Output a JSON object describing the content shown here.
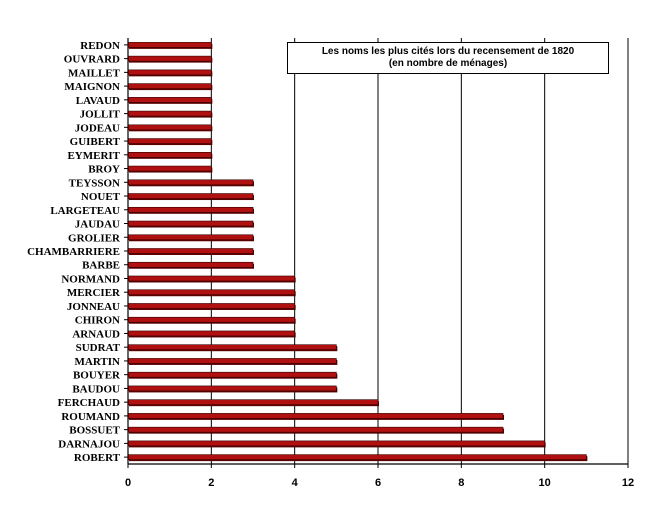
{
  "chart_data": {
    "type": "bar",
    "orientation": "horizontal",
    "title": "Les noms les plus cités lors du recensement de 1820",
    "subtitle": "(en nombre de ménages)",
    "categories": [
      "REDON",
      "OUVRARD",
      "MAILLET",
      "MAIGNON",
      "LAVAUD",
      "JOLLIT",
      "JODEAU",
      "GUIBERT",
      "EYMERIT",
      "BROY",
      "TEYSSON",
      "NOUET",
      "LARGETEAU",
      "JAUDAU",
      "GROLIER",
      "CHAMBARRIERE",
      "BARBE",
      "NORMAND",
      "MERCIER",
      "JONNEAU",
      "CHIRON",
      "ARNAUD",
      "SUDRAT",
      "MARTIN",
      "BOUYER",
      "BAUDOU",
      "FERCHAUD",
      "ROUMAND",
      "BOSSUET",
      "DARNAJOU",
      "ROBERT"
    ],
    "values": [
      2,
      2,
      2,
      2,
      2,
      2,
      2,
      2,
      2,
      2,
      3,
      3,
      3,
      3,
      3,
      3,
      3,
      4,
      4,
      4,
      4,
      4,
      5,
      5,
      5,
      5,
      6,
      9,
      9,
      10,
      11
    ],
    "xlim": [
      0,
      12
    ],
    "xticks": [
      0,
      2,
      4,
      6,
      8,
      10,
      12
    ],
    "grid": "vertical",
    "legend": "none",
    "bar_color": "#b01010",
    "bar_shadow_color": "#5a0000"
  }
}
